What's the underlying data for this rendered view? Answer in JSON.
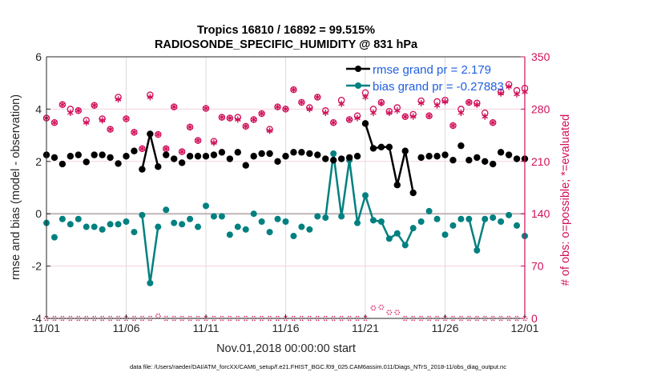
{
  "chart_data": {
    "type": "line",
    "title": [
      "Tropics 16810 / 16892 = 99.515%",
      "RADIOSONDE_SPECIFIC_HUMIDITY @ 831 hPa"
    ],
    "xlabel": "Nov.01,2018 00:00:00 start",
    "ylabel": "rmse and bias (model - observation)",
    "ylabel_right": "# of obs: o=possible; *=evaluated",
    "footnote": "data file: /Users/raeder/DAI/ATM_forcXX/CAM6_setup/f.e21.FHIST_BGC.f09_025.CAM6assim.011/Diags_NTrS_2018-11/obs_diag_output.nc",
    "x_unit": "days since Nov.01,2018 00:00:00",
    "xlim": [
      0,
      30
    ],
    "ylim": [
      -4,
      6
    ],
    "ylim_right": [
      0,
      350
    ],
    "xticks": [
      0,
      5,
      10,
      15,
      20,
      25,
      30
    ],
    "xtick_labels": [
      "11/01",
      "11/06",
      "11/11",
      "11/16",
      "11/21",
      "11/26",
      "12/01"
    ],
    "yticks": [
      -4,
      -2,
      0,
      2,
      4,
      6
    ],
    "ytick_labels": [
      "-4",
      "-2",
      "0",
      "2",
      "4",
      "6"
    ],
    "yticks_right": [
      0,
      70,
      140,
      210,
      280,
      350
    ],
    "ytick_labels_right": [
      "0",
      "70",
      "140",
      "210",
      "280",
      "350"
    ],
    "grid": "vertical-x-and-horizontal-right",
    "legend": {
      "placement": "top-right",
      "entries": [
        "rmse grand pr = 2.179",
        "bias grand pr = -0.27883"
      ]
    },
    "x": [
      0,
      0.5,
      1,
      1.5,
      2,
      2.5,
      3,
      3.5,
      4,
      4.5,
      5,
      5.5,
      6,
      6.5,
      7,
      7.5,
      8,
      8.5,
      9,
      9.5,
      10,
      10.5,
      11,
      11.5,
      12,
      12.5,
      13,
      13.5,
      14,
      14.5,
      15,
      15.5,
      16,
      16.5,
      17,
      17.5,
      18,
      18.5,
      19,
      19.5,
      20,
      20.5,
      21,
      21.5,
      22,
      22.5,
      23,
      23.5,
      24,
      24.5,
      25,
      25.5,
      26,
      26.5,
      27,
      27.5,
      28,
      28.5,
      29,
      29.5,
      30
    ],
    "series": [
      {
        "name": "rmse",
        "color": "#000000",
        "values": [
          2.25,
          2.15,
          1.9,
          2.2,
          2.25,
          1.98,
          2.25,
          2.25,
          2.15,
          1.92,
          2.2,
          2.4,
          1.7,
          3.05,
          1.8,
          2.25,
          2.1,
          1.95,
          2.2,
          2.2,
          2.2,
          2.25,
          2.35,
          2.1,
          2.35,
          1.85,
          2.2,
          2.3,
          2.3,
          2.0,
          2.2,
          2.35,
          2.35,
          2.3,
          2.25,
          2.1,
          2.05,
          2.1,
          2.15,
          2.2,
          3.45,
          2.5,
          2.55,
          2.55,
          1.1,
          2.4,
          0.8,
          2.15,
          2.2,
          2.2,
          2.25,
          2.05,
          2.6,
          2.05,
          2.15,
          2.0,
          1.9,
          2.35,
          2.25,
          2.1,
          2.1
        ]
      },
      {
        "name": "bias",
        "color": "#008080",
        "values": [
          -0.35,
          -0.9,
          -0.2,
          -0.4,
          -0.2,
          -0.5,
          -0.5,
          -0.6,
          -0.4,
          -0.4,
          -0.3,
          -0.7,
          -0.05,
          -2.65,
          -0.5,
          0.15,
          -0.35,
          -0.4,
          -0.2,
          -0.5,
          0.3,
          -0.1,
          -0.1,
          -0.8,
          -0.5,
          -0.6,
          0.0,
          -0.3,
          -0.7,
          -0.2,
          -0.3,
          -0.85,
          -0.5,
          -0.6,
          -0.1,
          -0.15,
          2.3,
          -0.1,
          2.05,
          -0.35,
          0.7,
          -0.25,
          -0.3,
          -0.95,
          -0.75,
          -1.2,
          -0.55,
          -0.3,
          0.1,
          -0.2,
          -0.8,
          -0.45,
          -0.2,
          -0.2,
          -1.4,
          -0.2,
          -0.15,
          -0.3,
          -0.05,
          -0.45,
          -0.85
        ]
      },
      {
        "name": "obs possible",
        "axis": "right",
        "color": "#d1105a",
        "marker": "o",
        "values": [
          268,
          262,
          286,
          280,
          278,
          265,
          285,
          267,
          253,
          296,
          267,
          249,
          227,
          299,
          246,
          227,
          283,
          223,
          256,
          238,
          281,
          237,
          269,
          268,
          269,
          257,
          266,
          274,
          253,
          283,
          280,
          306,
          289,
          282,
          296,
          278,
          262,
          292,
          266,
          271,
          302,
          280,
          289,
          277,
          282,
          270,
          273,
          291,
          271,
          290,
          292,
          258,
          280,
          289,
          288,
          275,
          262,
          303,
          313,
          305,
          308
        ]
      },
      {
        "name": "obs evaluated",
        "axis": "right",
        "color": "#d1105a",
        "marker": "*",
        "values": [
          268,
          262,
          286,
          275,
          278,
          262,
          285,
          265,
          253,
          293,
          267,
          249,
          227,
          296,
          246,
          227,
          283,
          223,
          256,
          238,
          281,
          235,
          269,
          268,
          266,
          257,
          266,
          274,
          251,
          283,
          280,
          306,
          289,
          280,
          296,
          275,
          262,
          287,
          266,
          268,
          296,
          275,
          288,
          275,
          278,
          270,
          270,
          288,
          271,
          285,
          290,
          258,
          275,
          289,
          286,
          270,
          262,
          301,
          310,
          300,
          303
        ]
      },
      {
        "name": "obs count (bottom row)",
        "axis": "right",
        "color": "#d1105a",
        "values": [
          0,
          0,
          0,
          0,
          0,
          0,
          0,
          0,
          0,
          0,
          0,
          0,
          0,
          0,
          3,
          0,
          0,
          0,
          0,
          0,
          0,
          0,
          0,
          0,
          0,
          0,
          0,
          0,
          0,
          0,
          0,
          0,
          0,
          0,
          0,
          0,
          0,
          0,
          0,
          0,
          0,
          14,
          15,
          8,
          8,
          0,
          0,
          0,
          0,
          0,
          0,
          0,
          0,
          0,
          0,
          0,
          0,
          0,
          0,
          0,
          0
        ]
      }
    ]
  }
}
